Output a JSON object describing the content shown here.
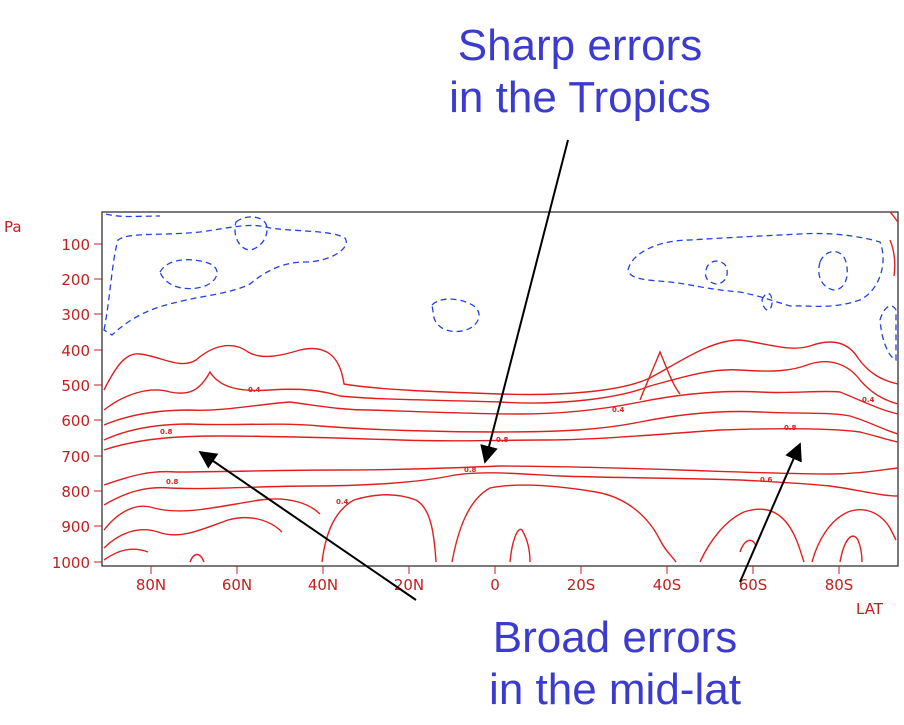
{
  "chart_data": {
    "type": "contour",
    "ylabel": "Pa",
    "xlabel": "LAT",
    "y_ticks": [
      "100",
      "200",
      "300",
      "400",
      "500",
      "600",
      "700",
      "800",
      "900",
      "1000"
    ],
    "x_ticks": [
      "80N",
      "60N",
      "40N",
      "20N",
      "0",
      "20S",
      "40S",
      "60S",
      "80S"
    ],
    "contour_labels": [
      "0.4",
      "0.4",
      "0.8",
      "0.8",
      "0.8",
      "0.8",
      "0.6",
      "0.4",
      "0.8",
      "0.4"
    ],
    "colors": {
      "positive": "#e02020",
      "negative": "#2244dd",
      "axis": "#c02020",
      "annotation": "#3b3bcf"
    }
  },
  "annotations": {
    "top_line1": "Sharp errors",
    "top_line2": "in the Tropics",
    "bottom_line1": "Broad errors",
    "bottom_line2": "in the mid-lat"
  }
}
